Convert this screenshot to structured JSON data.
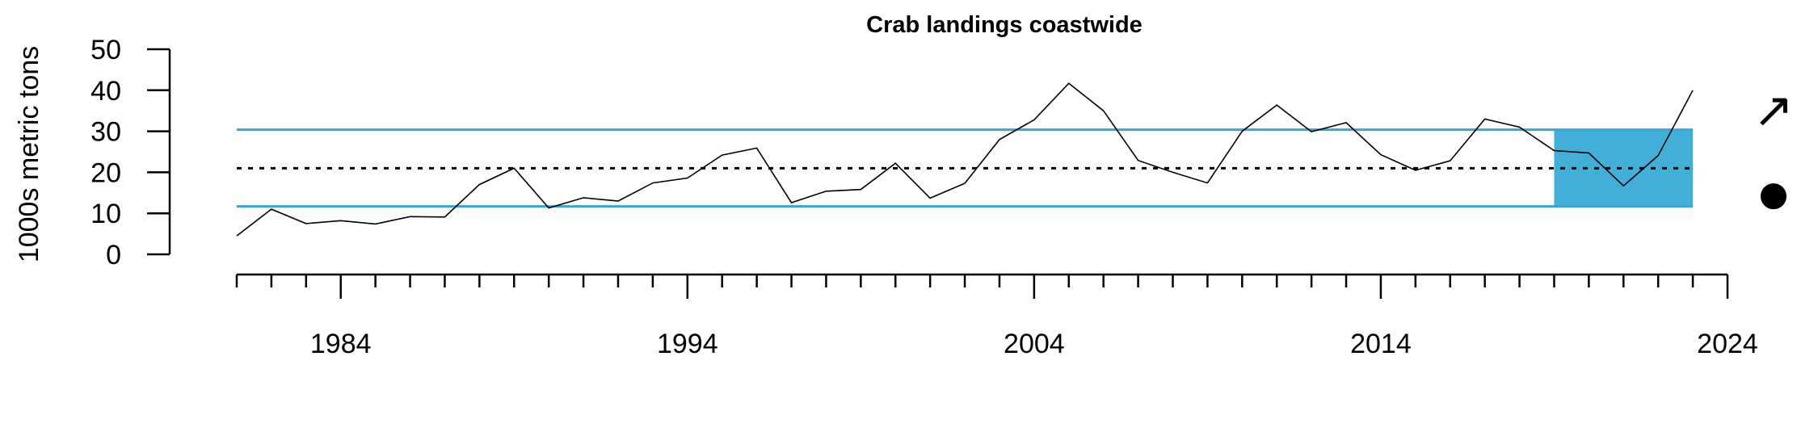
{
  "chart_data": {
    "type": "line",
    "title": "Crab landings coastwide",
    "ylabel": "1000s metric tons",
    "xlabel": "",
    "ylim": [
      0,
      50
    ],
    "xlim": [
      1981,
      2024
    ],
    "y_ticks": [
      "0",
      "10",
      "20",
      "30",
      "40",
      "50"
    ],
    "x_major_ticks": [
      "1984",
      "1994",
      "2004",
      "2014",
      "2024"
    ],
    "x": [
      1981,
      1982,
      1983,
      1984,
      1985,
      1986,
      1987,
      1988,
      1989,
      1990,
      1991,
      1992,
      1993,
      1994,
      1995,
      1996,
      1997,
      1998,
      1999,
      2000,
      2001,
      2002,
      2003,
      2004,
      2005,
      2006,
      2007,
      2008,
      2009,
      2010,
      2011,
      2012,
      2013,
      2014,
      2015,
      2016,
      2017,
      2018,
      2019,
      2020,
      2021,
      2022,
      2023
    ],
    "series": [
      {
        "values": [
          4.5,
          11,
          7.5,
          8.2,
          7.4,
          9.2,
          9.1,
          17,
          21,
          11.3,
          13.8,
          13,
          17.4,
          18.6,
          24.2,
          25.9,
          12.6,
          15.4,
          15.8,
          22.2,
          13.7,
          17.3,
          28,
          32.8,
          41.7,
          35,
          22.9,
          20,
          17.4,
          30,
          36.4,
          29.9,
          32.1,
          24.3,
          20.5,
          22.8,
          33,
          31,
          25.3,
          24.7,
          16.7,
          24.1,
          40
        ]
      }
    ],
    "mean": 21.0,
    "upper_sd": 30.4,
    "lower_sd": 11.7,
    "recent_window": [
      2019,
      2023
    ],
    "colors": {
      "band": "#3ba4d3",
      "shade": "#43aed8",
      "line": "#000000"
    },
    "trend_indicator": {
      "symbol": "↗",
      "name": "up-arrow-icon"
    },
    "mean_indicator": {
      "symbol": "●",
      "name": "filled-circle-icon"
    }
  }
}
